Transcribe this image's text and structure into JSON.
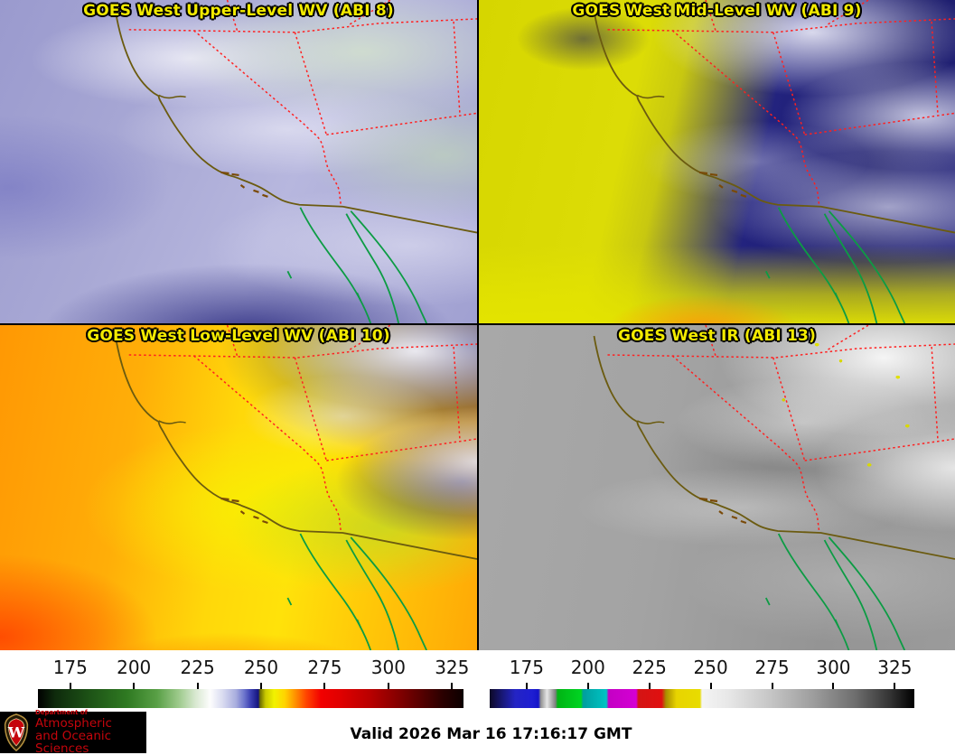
{
  "panels": [
    {
      "id": "abi8",
      "title": "GOES West Upper-Level WV (ABI 8)"
    },
    {
      "id": "abi9",
      "title": "GOES West Mid-Level WV (ABI 9)"
    },
    {
      "id": "abi10",
      "title": "GOES West Low-Level WV (ABI 10)"
    },
    {
      "id": "abi13",
      "title": "GOES West IR (ABI 13)"
    }
  ],
  "colorbars": {
    "wv": {
      "ticks": [
        175,
        200,
        225,
        250,
        275,
        300,
        325
      ]
    },
    "ir": {
      "ticks": [
        175,
        200,
        225,
        250,
        275,
        300,
        325
      ]
    }
  },
  "footer": {
    "valid_label": "Valid 2026 Mar 16 17:16:17 GMT",
    "logo": {
      "dept": "Department of",
      "line1": "Atmospheric",
      "line2": "and Oceanic Sciences",
      "crest_letter": "W"
    }
  },
  "colors": {
    "title_yellow": "#f2ea00",
    "state_border_red": "#ff2020",
    "coastline_olive": "#6b5b10",
    "mexico_coast_green": "#0c9c44",
    "islands_brown": "#7a4a08",
    "uw_red": "#c5050c"
  }
}
